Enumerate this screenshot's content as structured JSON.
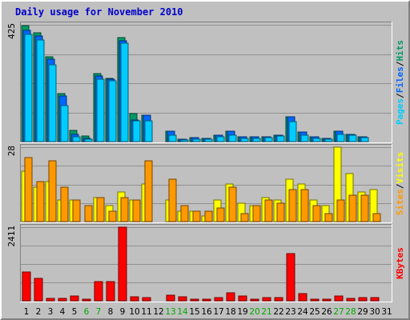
{
  "title": "Daily usage for November 2010",
  "chart_data": [
    {
      "type": "bar",
      "panel": "top",
      "ymax_label": "425",
      "ylim": [
        0,
        425
      ],
      "grid": true,
      "x": [
        1,
        2,
        3,
        4,
        5,
        6,
        7,
        8,
        9,
        10,
        11,
        12,
        13,
        14,
        15,
        16,
        17,
        18,
        19,
        20,
        21,
        22,
        23,
        24,
        25,
        26,
        27,
        28,
        29,
        30,
        31
      ],
      "series": [
        {
          "name": "Hits",
          "color": "#009966",
          "values": [
            422,
            397,
            310,
            175,
            42,
            20,
            247,
            230,
            377,
            102,
            95,
            0,
            39,
            8,
            14,
            11,
            23,
            37,
            18,
            17,
            18,
            22,
            91,
            35,
            17,
            11,
            38,
            27,
            17,
            0,
            0
          ]
        },
        {
          "name": "Files",
          "color": "#0066ff",
          "values": [
            405,
            385,
            299,
            166,
            27,
            13,
            238,
            228,
            366,
            79,
            95,
            0,
            39,
            8,
            14,
            11,
            23,
            37,
            18,
            17,
            18,
            22,
            91,
            35,
            17,
            11,
            38,
            27,
            17,
            0,
            0
          ]
        },
        {
          "name": "Pages",
          "color": "#00ccff",
          "values": [
            391,
            369,
            280,
            132,
            17,
            9,
            227,
            222,
            357,
            75,
            76,
            0,
            22,
            6,
            8,
            8,
            17,
            24,
            12,
            13,
            14,
            19,
            74,
            23,
            12,
            8,
            25,
            22,
            14,
            0,
            0
          ]
        }
      ],
      "right_labels": [
        {
          "text": "Pages",
          "color": "#00ccff"
        },
        {
          "text": "/",
          "color": "#000000"
        },
        {
          "text": "Files",
          "color": "#0066ff"
        },
        {
          "text": "/",
          "color": "#000000"
        },
        {
          "text": "Hits",
          "color": "#009966"
        }
      ]
    },
    {
      "type": "bar",
      "panel": "middle",
      "ymax_label": "28",
      "ylim": [
        0,
        28
      ],
      "grid": true,
      "x": [
        1,
        2,
        3,
        4,
        5,
        6,
        7,
        8,
        9,
        10,
        11,
        12,
        13,
        14,
        15,
        16,
        17,
        18,
        19,
        20,
        21,
        22,
        23,
        24,
        25,
        26,
        27,
        28,
        29,
        30,
        31
      ],
      "series": [
        {
          "name": "Visits",
          "color": "#ffff00",
          "values": [
            19,
            13,
            15,
            8,
            8,
            0,
            9,
            6,
            11,
            8,
            14,
            0,
            8,
            4,
            4,
            2,
            8,
            14,
            7,
            6,
            9,
            8,
            16,
            14,
            8,
            6,
            28,
            18,
            11,
            12,
            0
          ]
        },
        {
          "name": "Sites",
          "color": "#ff9900",
          "values": [
            24,
            15,
            23,
            13,
            8,
            6,
            9,
            4,
            9,
            8,
            23,
            0,
            16,
            6,
            4,
            4,
            5,
            13,
            3,
            6,
            8,
            7,
            12,
            12,
            6,
            3,
            8,
            10,
            10,
            3,
            0
          ]
        }
      ],
      "right_labels": [
        {
          "text": "Sites",
          "color": "#ff9900"
        },
        {
          "text": "/",
          "color": "#000000"
        },
        {
          "text": "Visits",
          "color": "#ffff00"
        }
      ]
    },
    {
      "type": "bar",
      "panel": "bottom",
      "ymax_label": "2411",
      "ylim": [
        0,
        2411
      ],
      "grid": true,
      "x": [
        1,
        2,
        3,
        4,
        5,
        6,
        7,
        8,
        9,
        10,
        11,
        12,
        13,
        14,
        15,
        16,
        17,
        18,
        19,
        20,
        21,
        22,
        23,
        24,
        25,
        26,
        27,
        28,
        29,
        30,
        31
      ],
      "series": [
        {
          "name": "KBytes",
          "color": "#ff0000",
          "values": [
            933,
            744,
            87,
            87,
            152,
            43,
            641,
            641,
            2411,
            129,
            108,
            0,
            193,
            122,
            43,
            43,
            108,
            252,
            168,
            43,
            108,
            108,
            1546,
            234,
            43,
            65,
            159,
            77,
            116,
            116,
            0
          ]
        }
      ],
      "right_labels": [
        {
          "text": "KBytes",
          "color": "#ff0000"
        }
      ]
    }
  ],
  "weekend_days": [
    6,
    7,
    13,
    14,
    20,
    21,
    27,
    28
  ],
  "colors": {
    "background": "#c0c0c0",
    "title": "#0000cc",
    "weekday_label": "#000000",
    "weekend_label": "#00aa00"
  }
}
